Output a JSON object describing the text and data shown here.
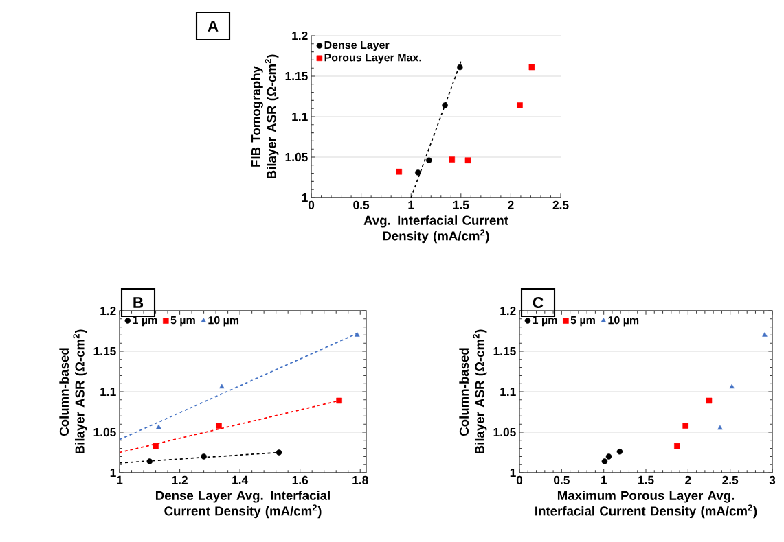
{
  "chart_data": [
    {
      "type": "scatter",
      "ylabel": "FIB Tomography Bilayer ASR (Ω-cm$^{2}$)",
      "xlabel": "Avg. Interfacial Current Density (mA/cm$^{2}$)",
      "annotations": [
        "A"
      ],
      "xlim": [
        0,
        2.5
      ],
      "ylim": [
        1,
        1.2
      ],
      "xticks": [
        0,
        0.5,
        1,
        1.5,
        2,
        2.5
      ],
      "yticks": [
        1,
        1.05,
        1.1,
        1.15,
        1.2
      ],
      "grid": "y",
      "legend": "top left",
      "series": [
        {
          "name": "Dense Layer",
          "color": "#000000",
          "marker": "circle",
          "x": [
            1.07,
            1.18,
            1.34,
            1.49
          ],
          "values": [
            1.031,
            1.046,
            1.114,
            1.161
          ]
        },
        {
          "name": "Porous Layer Max.",
          "color": "#ff0000",
          "marker": "square",
          "x": [
            0.88,
            1.41,
            1.57,
            2.09,
            2.21
          ],
          "values": [
            1.032,
            1.047,
            1.046,
            1.114,
            1.161
          ]
        },
        {
          "type": "line",
          "color": "#000000",
          "line_style": "dashed",
          "marker": "none",
          "x": [
            1.0,
            1.5
          ],
          "values": [
            1.0,
            1.168
          ]
        }
      ]
    },
    {
      "type": "scatter",
      "ylabel": "Column-based Bilayer ASR (Ω-cm$^{2}$)",
      "xlabel": "Dense Layer Avg. Interfacial Current Density (mA/cm$^{2}$)",
      "annotations": [
        "B"
      ],
      "xlim": [
        1,
        1.82
      ],
      "ylim": [
        1,
        1.2
      ],
      "xticks": [
        1,
        1.2,
        1.4,
        1.6,
        1.8
      ],
      "yticks": [
        1,
        1.05,
        1.1,
        1.15,
        1.2
      ],
      "grid": "y",
      "legend": "top left",
      "series": [
        {
          "name": "1 µm",
          "color": "#000000",
          "marker": "circle",
          "x": [
            1.1,
            1.28,
            1.53
          ],
          "values": [
            1.014,
            1.02,
            1.025
          ]
        },
        {
          "name": "5 µm",
          "color": "#ff0000",
          "marker": "square",
          "x": [
            1.12,
            1.33,
            1.73
          ],
          "values": [
            1.033,
            1.058,
            1.089
          ]
        },
        {
          "name": "10 µm",
          "color": "#4472c4",
          "marker": "triangle",
          "x": [
            1.13,
            1.34,
            1.79
          ],
          "values": [
            1.056,
            1.106,
            1.17
          ]
        },
        {
          "type": "line",
          "color": "#000000",
          "line_style": "dashed",
          "marker": "none",
          "x": [
            1.0,
            1.53
          ],
          "values": [
            1.012,
            1.025
          ]
        },
        {
          "type": "line",
          "color": "#ff0000",
          "line_style": "dashed",
          "marker": "none",
          "x": [
            1.0,
            1.73
          ],
          "values": [
            1.025,
            1.089
          ]
        },
        {
          "type": "line",
          "color": "#4472c4",
          "line_style": "dashed",
          "marker": "none",
          "x": [
            1.0,
            1.79
          ],
          "values": [
            1.041,
            1.172
          ]
        }
      ]
    },
    {
      "type": "scatter",
      "ylabel": "Column-based Bilayer ASR (Ω-cm$^{2}$)",
      "xlabel": "Maximum Porous Layer Avg. Interfacial Current Density (mA/cm$^{2}$)",
      "annotations": [
        "C"
      ],
      "xlim": [
        0,
        3
      ],
      "ylim": [
        1,
        1.2
      ],
      "xticks": [
        0,
        0.5,
        1,
        1.5,
        2,
        2.5,
        3
      ],
      "yticks": [
        1,
        1.05,
        1.1,
        1.15,
        1.2
      ],
      "grid": "y",
      "legend": "top left",
      "series": [
        {
          "name": "1 µm",
          "color": "#000000",
          "marker": "circle",
          "x": [
            1.01,
            1.06,
            1.19
          ],
          "values": [
            1.014,
            1.02,
            1.026
          ]
        },
        {
          "name": "5 µm",
          "color": "#ff0000",
          "marker": "square",
          "x": [
            1.87,
            1.97,
            2.25
          ],
          "values": [
            1.033,
            1.058,
            1.089
          ]
        },
        {
          "name": "10 µm",
          "color": "#4472c4",
          "marker": "triangle",
          "x": [
            2.38,
            2.52,
            2.91
          ],
          "values": [
            1.055,
            1.106,
            1.17
          ]
        }
      ]
    }
  ]
}
